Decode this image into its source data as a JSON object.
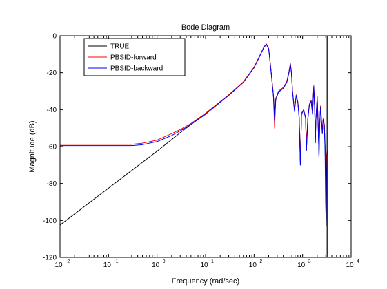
{
  "chart_data": {
    "type": "line",
    "title": "Bode Diagram",
    "xlabel": "Frequency  (rad/sec)",
    "ylabel": "Magnitude (dB)",
    "x_scale": "log",
    "xlim": [
      0.01,
      10000
    ],
    "ylim": [
      -120,
      0
    ],
    "x_ticks": [
      0.01,
      0.1,
      1,
      10,
      100,
      1000,
      10000
    ],
    "x_tick_labels": [
      {
        "base": "10",
        "exp": "-2"
      },
      {
        "base": "10",
        "exp": "-1"
      },
      {
        "base": "10",
        "exp": "0"
      },
      {
        "base": "10",
        "exp": "1"
      },
      {
        "base": "10",
        "exp": "2"
      },
      {
        "base": "10",
        "exp": "3"
      },
      {
        "base": "10",
        "exp": "4"
      }
    ],
    "y_ticks": [
      0,
      -20,
      -40,
      -60,
      -80,
      -100,
      -120
    ],
    "y_tick_labels": [
      "0",
      "-20",
      "-40",
      "-60",
      "-80",
      "-100",
      "-120"
    ],
    "grid": false,
    "legend_position": "top-left",
    "series": [
      {
        "name": "TRUE",
        "color": "#000000",
        "points": [
          [
            0.01,
            -102.5
          ],
          [
            0.1,
            -82.5
          ],
          [
            1,
            -62.5
          ],
          [
            3,
            -52.5
          ],
          [
            10,
            -42
          ],
          [
            30,
            -32
          ],
          [
            60,
            -25
          ],
          [
            100,
            -17
          ],
          [
            130,
            -11
          ],
          [
            160,
            -6
          ],
          [
            180,
            -4.5
          ],
          [
            200,
            -7
          ],
          [
            220,
            -17
          ],
          [
            250,
            -32
          ],
          [
            265,
            -42
          ],
          [
            280,
            -34
          ],
          [
            320,
            -30
          ],
          [
            400,
            -28
          ],
          [
            470,
            -25
          ],
          [
            520,
            -20
          ],
          [
            560,
            -15
          ],
          [
            590,
            -20
          ],
          [
            620,
            -30
          ],
          [
            680,
            -40
          ],
          [
            740,
            -32
          ],
          [
            800,
            -36
          ],
          [
            850,
            -44
          ],
          [
            900,
            -70
          ],
          [
            950,
            -42
          ],
          [
            1050,
            -40
          ],
          [
            1150,
            -44
          ],
          [
            1200,
            -62
          ],
          [
            1280,
            -45
          ],
          [
            1380,
            -37
          ],
          [
            1500,
            -35
          ],
          [
            1600,
            -42
          ],
          [
            1700,
            -28
          ],
          [
            1780,
            -40
          ],
          [
            1830,
            -58
          ],
          [
            1880,
            -45
          ],
          [
            2000,
            -33
          ],
          [
            2100,
            -50
          ],
          [
            2180,
            -66
          ],
          [
            2250,
            -48
          ],
          [
            2350,
            -38
          ],
          [
            2450,
            -46
          ],
          [
            2550,
            -53
          ],
          [
            2650,
            -45
          ],
          [
            2800,
            -48
          ],
          [
            2900,
            -60
          ],
          [
            2980,
            -78
          ],
          [
            3050,
            -103
          ],
          [
            3120,
            -72
          ],
          [
            3200,
            -62
          ]
        ]
      },
      {
        "name": "PBSID-forward",
        "color": "#ff0000",
        "points": [
          [
            0.01,
            -58.8
          ],
          [
            0.1,
            -58.8
          ],
          [
            0.3,
            -58.8
          ],
          [
            0.5,
            -58.2
          ],
          [
            1,
            -56.5
          ],
          [
            2,
            -53
          ],
          [
            3,
            -50.8
          ],
          [
            5,
            -47.5
          ],
          [
            10,
            -42
          ],
          [
            30,
            -32
          ],
          [
            60,
            -25
          ],
          [
            100,
            -17
          ],
          [
            130,
            -11
          ],
          [
            160,
            -6
          ],
          [
            180,
            -4.5
          ],
          [
            200,
            -7
          ],
          [
            220,
            -17
          ],
          [
            250,
            -32
          ],
          [
            265,
            -50
          ],
          [
            280,
            -34
          ],
          [
            320,
            -30
          ],
          [
            400,
            -28
          ],
          [
            470,
            -25
          ],
          [
            520,
            -20
          ],
          [
            560,
            -15
          ],
          [
            590,
            -20
          ],
          [
            620,
            -30
          ],
          [
            680,
            -40
          ],
          [
            740,
            -32
          ],
          [
            800,
            -36
          ],
          [
            850,
            -44
          ],
          [
            900,
            -68
          ],
          [
            950,
            -42
          ],
          [
            1050,
            -40
          ],
          [
            1150,
            -44
          ],
          [
            1200,
            -58
          ],
          [
            1280,
            -45
          ],
          [
            1380,
            -37
          ],
          [
            1500,
            -35
          ],
          [
            1600,
            -42
          ],
          [
            1700,
            -27
          ],
          [
            1780,
            -40
          ],
          [
            1830,
            -53
          ],
          [
            1880,
            -45
          ],
          [
            2000,
            -33
          ],
          [
            2100,
            -48
          ],
          [
            2180,
            -56
          ],
          [
            2250,
            -48
          ],
          [
            2350,
            -38
          ],
          [
            2450,
            -46
          ],
          [
            2550,
            -50
          ],
          [
            2650,
            -45
          ],
          [
            2800,
            -48
          ],
          [
            2900,
            -58
          ],
          [
            2980,
            -65
          ],
          [
            3050,
            -75
          ],
          [
            3120,
            -65
          ],
          [
            3200,
            -62
          ]
        ]
      },
      {
        "name": "PBSID-backward",
        "color": "#0000ff",
        "points": [
          [
            0.01,
            -59.5
          ],
          [
            0.1,
            -59.5
          ],
          [
            0.3,
            -59.5
          ],
          [
            0.5,
            -59
          ],
          [
            1,
            -57.3
          ],
          [
            2,
            -54
          ],
          [
            3,
            -51.5
          ],
          [
            5,
            -48
          ],
          [
            10,
            -42.5
          ],
          [
            30,
            -32.3
          ],
          [
            60,
            -25.3
          ],
          [
            100,
            -17.3
          ],
          [
            130,
            -11.3
          ],
          [
            160,
            -6.2
          ],
          [
            180,
            -4.8
          ],
          [
            200,
            -7.2
          ],
          [
            220,
            -17.5
          ],
          [
            250,
            -32.5
          ],
          [
            265,
            -46
          ],
          [
            280,
            -34.5
          ],
          [
            320,
            -30.5
          ],
          [
            400,
            -28.5
          ],
          [
            470,
            -25.5
          ],
          [
            520,
            -20.5
          ],
          [
            560,
            -15.5
          ],
          [
            590,
            -20.5
          ],
          [
            620,
            -30.5
          ],
          [
            680,
            -41
          ],
          [
            740,
            -32.5
          ],
          [
            800,
            -36.5
          ],
          [
            850,
            -45
          ],
          [
            900,
            -70
          ],
          [
            950,
            -42.5
          ],
          [
            1050,
            -40.5
          ],
          [
            1150,
            -44.5
          ],
          [
            1200,
            -62
          ],
          [
            1280,
            -45.5
          ],
          [
            1380,
            -37.5
          ],
          [
            1500,
            -35.5
          ],
          [
            1600,
            -42.5
          ],
          [
            1700,
            -27.5
          ],
          [
            1780,
            -41
          ],
          [
            1830,
            -58
          ],
          [
            1880,
            -45.5
          ],
          [
            2000,
            -33.5
          ],
          [
            2100,
            -50
          ],
          [
            2180,
            -66
          ],
          [
            2250,
            -48.5
          ],
          [
            2350,
            -38.5
          ],
          [
            2450,
            -46.5
          ],
          [
            2550,
            -53
          ],
          [
            2650,
            -45.5
          ],
          [
            2800,
            -48.5
          ],
          [
            2900,
            -62
          ],
          [
            2980,
            -90
          ],
          [
            3050,
            -100
          ],
          [
            3120,
            -75
          ],
          [
            3200,
            -63
          ]
        ]
      }
    ],
    "vertical_marker": {
      "x": 3200,
      "color": "#000000"
    }
  }
}
